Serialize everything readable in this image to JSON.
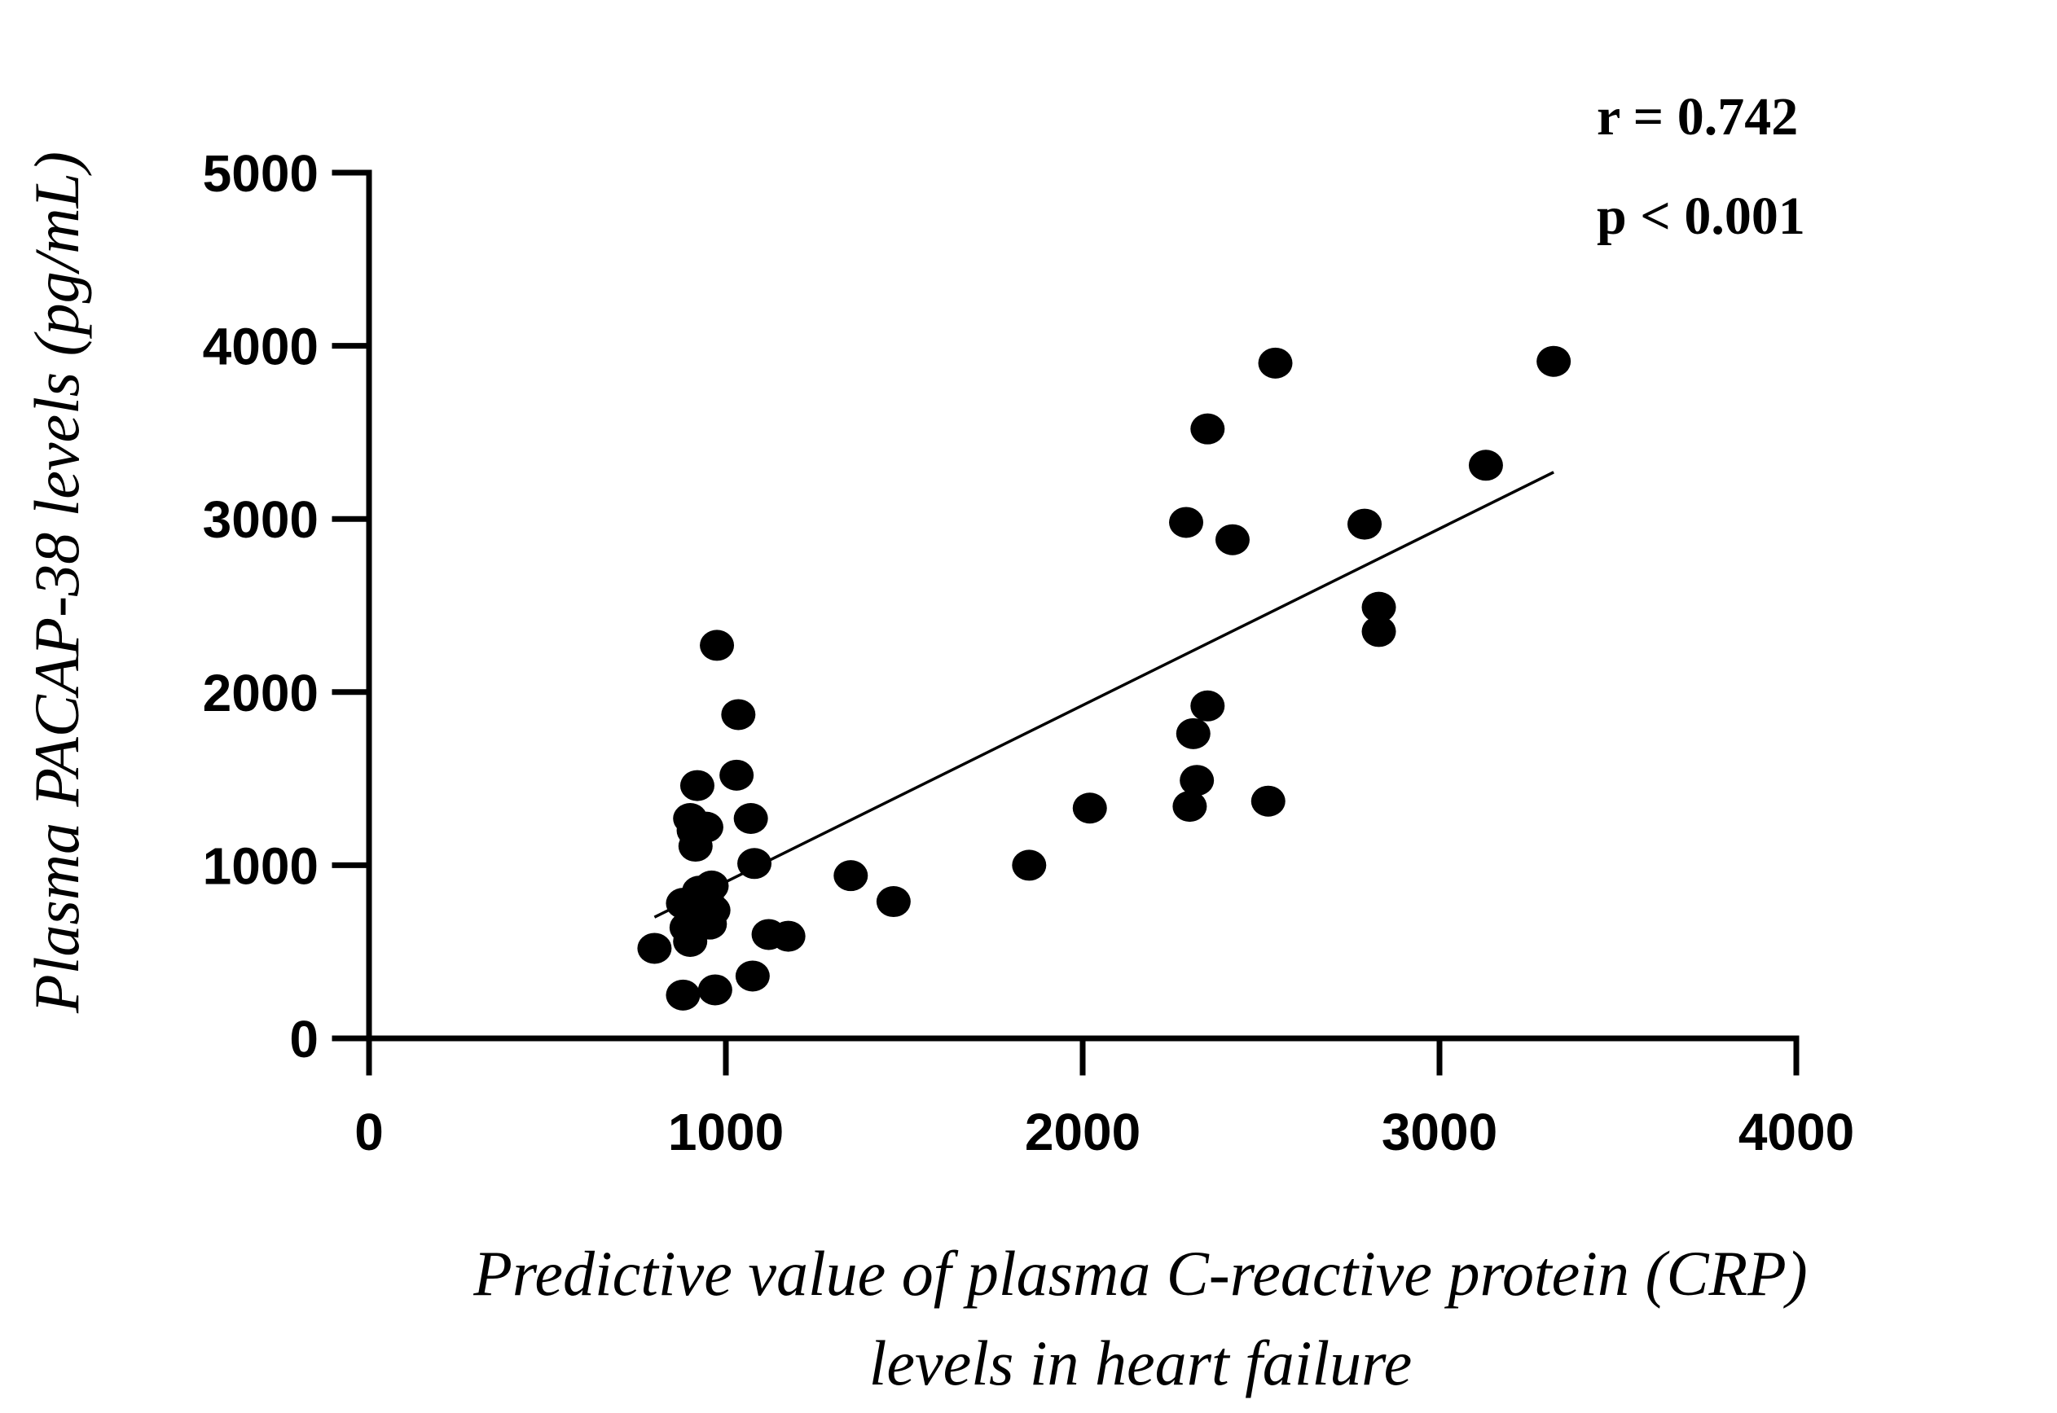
{
  "chart_data": {
    "type": "scatter",
    "title": "",
    "xlabel_lines": [
      "Predictive value of plasma C-reactive protein (CRP)",
      "levels in heart failure"
    ],
    "ylabel": "Plasma PACAP-38 levels (pg/mL)",
    "xlim": [
      0,
      4000
    ],
    "ylim": [
      0,
      5000
    ],
    "xticks": [
      0,
      1000,
      2000,
      3000,
      4000
    ],
    "yticks": [
      0,
      1000,
      2000,
      3000,
      4000,
      5000
    ],
    "grid": false,
    "annotations": [
      "r = 0.742",
      "p < 0.001"
    ],
    "regression_line": {
      "x": [
        800,
        3320
      ],
      "y": [
        700,
        3270
      ]
    },
    "series": [
      {
        "name": "patients",
        "color": "#000000",
        "points": [
          [
            800,
            520
          ],
          [
            880,
            780
          ],
          [
            890,
            640
          ],
          [
            900,
            560
          ],
          [
            880,
            250
          ],
          [
            900,
            1270
          ],
          [
            910,
            1200
          ],
          [
            915,
            1110
          ],
          [
            920,
            1460
          ],
          [
            925,
            850
          ],
          [
            930,
            720
          ],
          [
            940,
            830
          ],
          [
            945,
            1220
          ],
          [
            950,
            780
          ],
          [
            955,
            660
          ],
          [
            960,
            880
          ],
          [
            965,
            740
          ],
          [
            970,
            280
          ],
          [
            975,
            2270
          ],
          [
            1035,
            1870
          ],
          [
            1030,
            1520
          ],
          [
            1070,
            1270
          ],
          [
            1080,
            1010
          ],
          [
            1075,
            360
          ],
          [
            1120,
            600
          ],
          [
            1175,
            590
          ],
          [
            1350,
            940
          ],
          [
            1470,
            790
          ],
          [
            1850,
            1000
          ],
          [
            2020,
            1330
          ],
          [
            2290,
            2980
          ],
          [
            2300,
            1340
          ],
          [
            2310,
            1760
          ],
          [
            2320,
            1490
          ],
          [
            2350,
            1920
          ],
          [
            2350,
            3520
          ],
          [
            2420,
            2880
          ],
          [
            2520,
            1370
          ],
          [
            2540,
            3900
          ],
          [
            2790,
            2970
          ],
          [
            2830,
            2490
          ],
          [
            2830,
            2350
          ],
          [
            3130,
            3310
          ],
          [
            3320,
            3910
          ]
        ]
      }
    ]
  }
}
